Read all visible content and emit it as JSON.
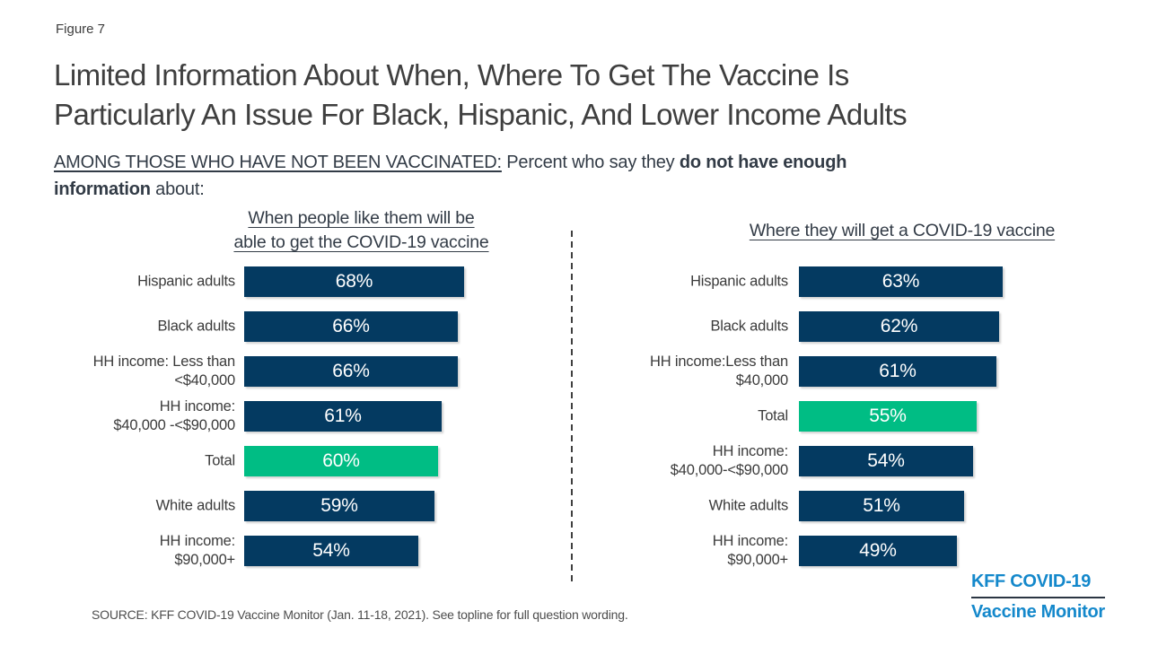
{
  "figure_label": "Figure 7",
  "title": {
    "line1": "Limited Information About When, Where To Get The Vaccine Is",
    "line2": "Particularly An Issue For Black, Hispanic, And Lower Income Adults"
  },
  "subtitle": {
    "lines": [
      [
        {
          "text": "AMONG THOSE WHO HAVE NOT BEEN VACCINATED:",
          "style": "underline"
        },
        {
          "text": "  Percent who say they ",
          "style": "normal"
        },
        {
          "text": "do not have enough",
          "style": "bold"
        }
      ],
      [
        {
          "text": "information",
          "style": "bold"
        },
        {
          "text": " about:",
          "style": "normal"
        }
      ]
    ]
  },
  "colors": {
    "bar_navy": "#043a61",
    "bar_green": "#00bd84",
    "logo_blue": "#1488cb",
    "text_dark": "#3f3f3f"
  },
  "chart_data": [
    {
      "type": "bar",
      "orientation": "horizontal",
      "title": "When people like them will be able to get the COVID-19 vaccine",
      "title_lines": [
        "When people like them will be",
        "able to get the COVID-19 vaccine"
      ],
      "categories": [
        "Hispanic adults",
        "Black adults",
        "HH income: Less than\n<$40,000",
        "HH income:\n$40,000 -<$90,000",
        "Total",
        "White adults",
        "HH income:\n$90,000+"
      ],
      "values": [
        68,
        66,
        66,
        61,
        60,
        59,
        54
      ],
      "value_suffix": "%",
      "highlight_index": 4,
      "xlim": [
        0,
        100
      ],
      "grid": false,
      "legend": false
    },
    {
      "type": "bar",
      "orientation": "horizontal",
      "title": "Where they will get a COVID-19 vaccine",
      "title_lines": [
        "Where they will get a COVID-19 vaccine"
      ],
      "categories": [
        "Hispanic adults",
        "Black adults",
        "HH income:Less than\n$40,000",
        "Total",
        "HH income:\n$40,000-<$90,000",
        "White adults",
        "HH income:\n$90,000+"
      ],
      "values": [
        63,
        62,
        61,
        55,
        54,
        51,
        49
      ],
      "value_suffix": "%",
      "highlight_index": 3,
      "xlim": [
        0,
        100
      ],
      "grid": false,
      "legend": false
    }
  ],
  "source": "SOURCE: KFF COVID-19 Vaccine Monitor (Jan. 11-18, 2021). See topline for full question wording.",
  "logo": {
    "line1": "KFF COVID-19",
    "line2": "Vaccine Monitor"
  }
}
